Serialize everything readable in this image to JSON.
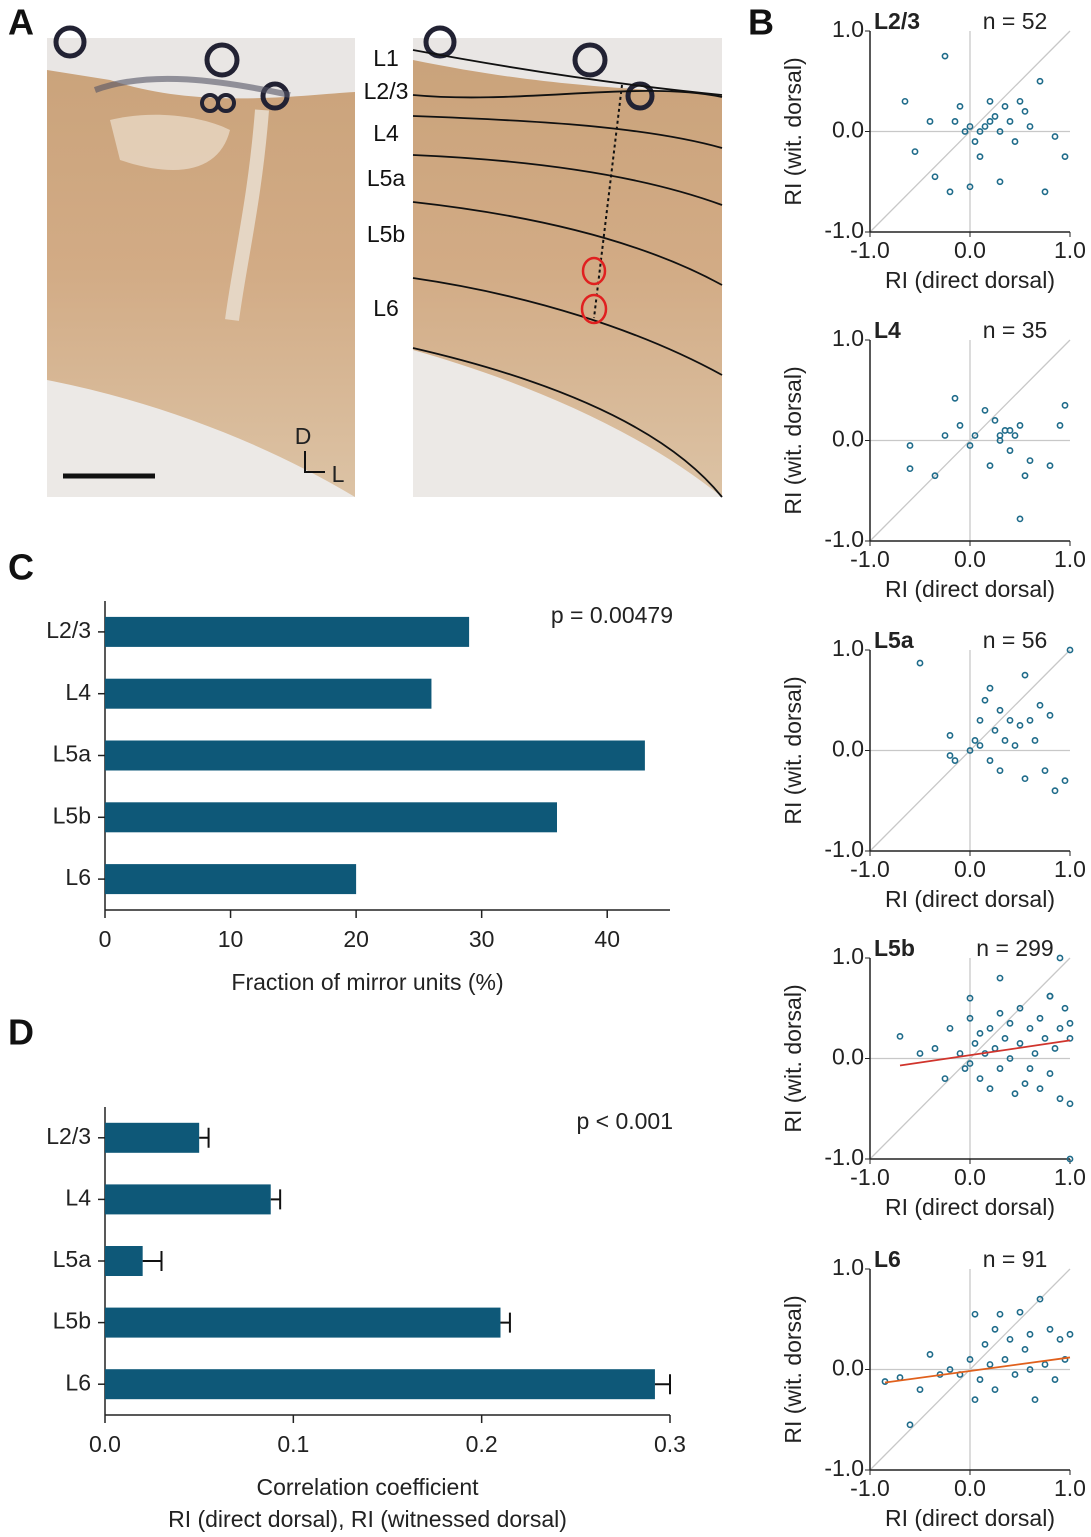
{
  "panel_labels": [
    "A",
    "B",
    "C",
    "D"
  ],
  "panel_a": {
    "layer_labels": [
      "L1",
      "L2/3",
      "L4",
      "L5a",
      "L5b",
      "L6"
    ],
    "orientation": [
      "D",
      "L"
    ]
  },
  "chart_data": [
    {
      "type": "barh",
      "categories": [
        "L2/3",
        "L4",
        "L5a",
        "L5b",
        "L6"
      ],
      "values": [
        29,
        26,
        43,
        36,
        20
      ],
      "color": "#0e5878",
      "xlim": [
        0,
        45
      ],
      "xticks": [
        0,
        10,
        20,
        30,
        40
      ],
      "xlabel": [
        "Fraction of mirror units (%)"
      ],
      "annotation": "p = 0.00479"
    },
    {
      "type": "barh",
      "categories": [
        "L2/3",
        "L4",
        "L5a",
        "L5b",
        "L6"
      ],
      "values": [
        0.05,
        0.088,
        0.02,
        0.21,
        0.292
      ],
      "errors": [
        0.005,
        0.005,
        0.01,
        0.005,
        0.008
      ],
      "color": "#0e5878",
      "xlim": [
        0,
        0.3
      ],
      "xticks": [
        {
          "value": 0,
          "label": "0.0"
        },
        {
          "value": 0.1,
          "label": "0.1"
        },
        {
          "value": 0.2,
          "label": "0.2"
        },
        {
          "value": 0.3,
          "label": "0.3"
        }
      ],
      "xlabel": [
        "Correlation coefficient",
        "RI (direct dorsal), RI (witnessed dorsal)"
      ],
      "annotation": "p < 0.001"
    },
    {
      "type": "scatter",
      "title": "L2/3",
      "annotation": "n = 52",
      "xlabel": "RI (direct dorsal)",
      "ylabel": "RI (wit. dorsal)",
      "color": "#1e6b8a",
      "xlim": [
        -1,
        1
      ],
      "ylim": [
        -1,
        1
      ],
      "xticks": [
        {
          "value": -1,
          "label": "-1.0"
        },
        {
          "value": 0,
          "label": "0.0"
        },
        {
          "value": 1,
          "label": "1.0"
        }
      ],
      "yticks": [
        {
          "value": -1,
          "label": "-1.0"
        },
        {
          "value": 0,
          "label": "0.0"
        },
        {
          "value": 1,
          "label": "1.0"
        }
      ],
      "x": [
        -0.65,
        -0.55,
        -0.25,
        -0.4,
        -0.2,
        -0.1,
        -0.15,
        0.0,
        0.05,
        0.1,
        0.15,
        0.2,
        0.25,
        0.3,
        0.35,
        0.4,
        0.45,
        0.5,
        0.55,
        0.6,
        0.7,
        0.75,
        0.85,
        0.95,
        -0.35,
        0.0,
        0.2,
        0.3,
        0.1,
        -0.05
      ],
      "y": [
        0.3,
        -0.2,
        0.75,
        0.1,
        -0.6,
        0.25,
        0.1,
        0.05,
        -0.1,
        0.0,
        0.05,
        0.1,
        0.15,
        0.0,
        0.25,
        0.1,
        -0.1,
        0.3,
        0.2,
        0.05,
        0.5,
        -0.6,
        -0.05,
        -0.25,
        -0.45,
        -0.55,
        0.3,
        -0.5,
        -0.25,
        0.0
      ]
    },
    {
      "type": "scatter",
      "title": "L4",
      "annotation": "n = 35",
      "xlabel": "RI (direct dorsal)",
      "ylabel": "RI (wit. dorsal)",
      "color": "#1e6b8a",
      "xlim": [
        -1,
        1
      ],
      "ylim": [
        -1,
        1
      ],
      "xticks": [
        {
          "value": -1,
          "label": "-1.0"
        },
        {
          "value": 0,
          "label": "0.0"
        },
        {
          "value": 1,
          "label": "1.0"
        }
      ],
      "yticks": [
        {
          "value": -1,
          "label": "-1.0"
        },
        {
          "value": 0,
          "label": "0.0"
        },
        {
          "value": 1,
          "label": "1.0"
        }
      ],
      "x": [
        -0.6,
        -0.6,
        -0.35,
        -0.25,
        -0.15,
        -0.1,
        0.0,
        0.05,
        0.15,
        0.2,
        0.25,
        0.3,
        0.35,
        0.4,
        0.45,
        0.5,
        0.55,
        0.6,
        0.5,
        0.8,
        0.9,
        0.95,
        0.3,
        0.4
      ],
      "y": [
        -0.05,
        -0.28,
        -0.35,
        0.05,
        0.42,
        0.15,
        -0.05,
        0.05,
        0.3,
        -0.25,
        0.2,
        0.0,
        0.1,
        -0.1,
        0.05,
        0.15,
        -0.35,
        -0.2,
        -0.78,
        -0.25,
        0.15,
        0.35,
        0.05,
        0.1
      ]
    },
    {
      "type": "scatter",
      "title": "L5a",
      "annotation": "n = 56",
      "xlabel": "RI (direct dorsal)",
      "ylabel": "RI (wit. dorsal)",
      "color": "#1e6b8a",
      "xlim": [
        -1,
        1
      ],
      "ylim": [
        -1,
        1
      ],
      "xticks": [
        {
          "value": -1,
          "label": "-1.0"
        },
        {
          "value": 0,
          "label": "0.0"
        },
        {
          "value": 1,
          "label": "1.0"
        }
      ],
      "yticks": [
        {
          "value": -1,
          "label": "-1.0"
        },
        {
          "value": 0,
          "label": "0.0"
        },
        {
          "value": 1,
          "label": "1.0"
        }
      ],
      "x": [
        -0.5,
        -0.2,
        -0.15,
        0.0,
        0.05,
        0.1,
        0.15,
        0.2,
        0.25,
        0.3,
        0.35,
        0.4,
        0.45,
        0.5,
        0.55,
        0.6,
        0.65,
        0.7,
        0.75,
        0.8,
        0.85,
        0.95,
        1.0,
        0.2,
        0.3,
        0.55,
        0.1,
        -0.2
      ],
      "y": [
        0.87,
        0.15,
        -0.1,
        0.0,
        0.1,
        0.3,
        0.5,
        0.62,
        0.2,
        0.4,
        0.1,
        0.3,
        0.05,
        0.25,
        0.75,
        0.3,
        0.1,
        0.45,
        -0.2,
        0.35,
        -0.4,
        -0.3,
        1.0,
        -0.1,
        -0.2,
        -0.28,
        0.05,
        -0.05
      ]
    },
    {
      "type": "scatter",
      "title": "L5b",
      "annotation": "n = 299",
      "xlabel": "RI (direct dorsal)",
      "ylabel": "RI (wit. dorsal)",
      "color": "#1e6b8a",
      "xlim": [
        -1,
        1
      ],
      "ylim": [
        -1,
        1
      ],
      "xticks": [
        {
          "value": -1,
          "label": "-1.0"
        },
        {
          "value": 0,
          "label": "0.0"
        },
        {
          "value": 1,
          "label": "1.0"
        }
      ],
      "yticks": [
        {
          "value": -1,
          "label": "-1.0"
        },
        {
          "value": 0,
          "label": "0.0"
        },
        {
          "value": 1,
          "label": "1.0"
        }
      ],
      "x": [
        -0.7,
        -0.5,
        -0.35,
        -0.25,
        -0.2,
        -0.1,
        -0.05,
        0.0,
        0.0,
        0.05,
        0.1,
        0.1,
        0.15,
        0.2,
        0.2,
        0.25,
        0.3,
        0.3,
        0.35,
        0.4,
        0.4,
        0.45,
        0.5,
        0.5,
        0.55,
        0.6,
        0.6,
        0.65,
        0.7,
        0.7,
        0.75,
        0.8,
        0.8,
        0.85,
        0.9,
        0.9,
        0.95,
        1.0,
        1.0,
        1.0,
        0.3,
        0.8,
        0.9,
        1.0,
        0.0
      ],
      "y": [
        0.22,
        0.05,
        0.1,
        -0.2,
        0.3,
        0.05,
        -0.1,
        0.4,
        -0.05,
        0.15,
        0.25,
        -0.2,
        0.05,
        0.3,
        -0.3,
        0.1,
        0.45,
        -0.1,
        0.2,
        0.0,
        0.35,
        -0.35,
        0.15,
        0.5,
        -0.25,
        0.3,
        -0.1,
        0.05,
        0.4,
        -0.3,
        0.2,
        0.62,
        -0.15,
        0.1,
        0.3,
        -0.4,
        0.5,
        0.2,
        -0.45,
        0.35,
        0.8,
        0.62,
        1.0,
        -1.0,
        0.6
      ],
      "fit": {
        "x": [
          -0.7,
          1.0
        ],
        "y": [
          -0.07,
          0.18
        ],
        "color": "#d0342c"
      }
    },
    {
      "type": "scatter",
      "title": "L6",
      "annotation": "n = 91",
      "xlabel": "RI (direct dorsal)",
      "ylabel": "RI (wit. dorsal)",
      "color": "#1e6b8a",
      "xlim": [
        -1,
        1
      ],
      "ylim": [
        -1,
        1
      ],
      "xticks": [
        {
          "value": -1,
          "label": "-1.0"
        },
        {
          "value": 0,
          "label": "0.0"
        },
        {
          "value": 1,
          "label": "1.0"
        }
      ],
      "yticks": [
        {
          "value": -1,
          "label": "-1.0"
        },
        {
          "value": 0,
          "label": "0.0"
        },
        {
          "value": 1,
          "label": "1.0"
        }
      ],
      "x": [
        -0.85,
        -0.7,
        -0.6,
        -0.5,
        -0.4,
        -0.3,
        -0.2,
        -0.1,
        0.0,
        0.05,
        0.1,
        0.15,
        0.2,
        0.25,
        0.3,
        0.35,
        0.4,
        0.45,
        0.5,
        0.55,
        0.6,
        0.65,
        0.7,
        0.75,
        0.8,
        0.85,
        0.9,
        0.95,
        1.0,
        0.05,
        0.25,
        0.6
      ],
      "y": [
        -0.12,
        -0.08,
        -0.55,
        -0.2,
        0.15,
        -0.05,
        0.0,
        -0.05,
        0.1,
        0.55,
        -0.1,
        0.25,
        0.05,
        -0.2,
        0.55,
        0.1,
        0.3,
        -0.05,
        0.57,
        0.2,
        0.35,
        -0.3,
        0.7,
        0.05,
        0.4,
        -0.1,
        0.3,
        0.1,
        0.35,
        -0.3,
        0.4,
        0.0
      ],
      "fit": {
        "x": [
          -0.85,
          1.0
        ],
        "y": [
          -0.13,
          0.12
        ],
        "color": "#e0601c"
      }
    }
  ]
}
